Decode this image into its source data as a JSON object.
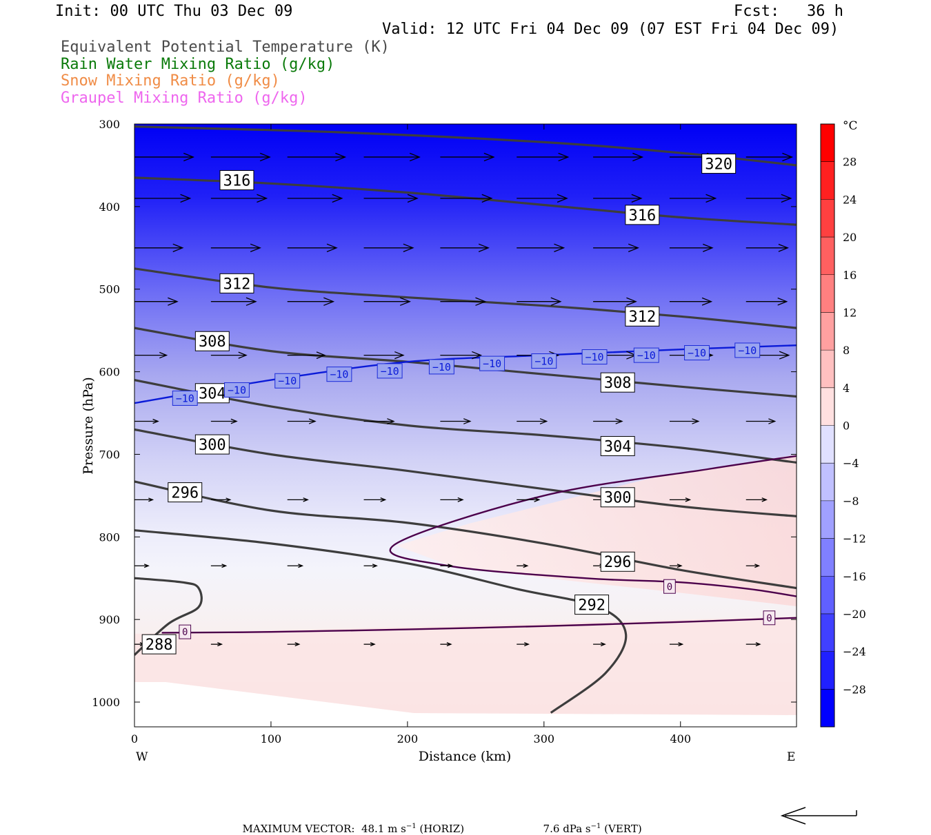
{
  "header": {
    "init": "Init: 00 UTC Thu 03 Dec 09",
    "fcst": "Fcst:   36 h",
    "valid": "Valid: 12 UTC Fri 04 Dec 09 (07 EST Fri 04 Dec 09)",
    "fields": [
      {
        "label": "Equivalent Potential Temperature (K)",
        "color": "#4a4a4a"
      },
      {
        "label": "Rain Water Mixing Ratio (g/kg)",
        "color": "#0a7a0a"
      },
      {
        "label": "Snow Mixing Ratio (g/kg)",
        "color": "#f08c46"
      },
      {
        "label": "Graupel Mixing Ratio (g/kg)",
        "color": "#ee66ee"
      }
    ]
  },
  "chart_data": {
    "type": "cross-section",
    "xlabel": "Distance (km)",
    "ylabel": "Pressure (hPa)",
    "xlim": [
      0,
      485
    ],
    "ylim": [
      1030,
      300
    ],
    "y_reversed": true,
    "x_ticks": [
      0,
      100,
      200,
      300,
      400
    ],
    "y_ticks": [
      300,
      400,
      500,
      600,
      700,
      800,
      900,
      1000
    ],
    "left_end_label": "W",
    "right_end_label": "E",
    "colorbar": {
      "unit": "°C",
      "range": [
        -32,
        32
      ],
      "tick_labels": [
        "28",
        "24",
        "20",
        "16",
        "12",
        "8",
        "4",
        "0",
        "−4",
        "−8",
        "−12",
        "−16",
        "−20",
        "−24",
        "−28"
      ],
      "cold_color": "#0000ff",
      "warm_color": "#ff0000"
    },
    "theta_e_contours": [
      {
        "value": "320",
        "points": [
          [
            0,
            303
          ],
          [
            150,
            310
          ],
          [
            300,
            322
          ],
          [
            400,
            335
          ],
          [
            485,
            350
          ]
        ],
        "labels": [
          [
            428,
            348
          ]
        ]
      },
      {
        "value": "316",
        "points": [
          [
            0,
            365
          ],
          [
            100,
            372
          ],
          [
            200,
            383
          ],
          [
            300,
            398
          ],
          [
            400,
            413
          ],
          [
            485,
            422
          ]
        ],
        "labels": [
          [
            75,
            368
          ],
          [
            372,
            410
          ]
        ]
      },
      {
        "value": "312",
        "points": [
          [
            0,
            475
          ],
          [
            100,
            498
          ],
          [
            200,
            510
          ],
          [
            300,
            520
          ],
          [
            400,
            533
          ],
          [
            485,
            547
          ]
        ],
        "labels": [
          [
            75,
            493
          ],
          [
            372,
            533
          ]
        ]
      },
      {
        "value": "308",
        "points": [
          [
            0,
            547
          ],
          [
            100,
            575
          ],
          [
            200,
            588
          ],
          [
            300,
            603
          ],
          [
            400,
            618
          ],
          [
            485,
            630
          ]
        ],
        "labels": [
          [
            57,
            563
          ],
          [
            354,
            613
          ]
        ]
      },
      {
        "value": "304",
        "points": [
          [
            0,
            610
          ],
          [
            100,
            642
          ],
          [
            200,
            665
          ],
          [
            300,
            677
          ],
          [
            400,
            692
          ],
          [
            485,
            710
          ]
        ],
        "labels": [
          [
            57,
            626
          ],
          [
            354,
            690
          ]
        ]
      },
      {
        "value": "300",
        "points": [
          [
            0,
            670
          ],
          [
            100,
            700
          ],
          [
            200,
            720
          ],
          [
            300,
            742
          ],
          [
            400,
            763
          ],
          [
            485,
            775
          ]
        ],
        "labels": [
          [
            57,
            688
          ],
          [
            354,
            752
          ]
        ]
      },
      {
        "value": "296",
        "points": [
          [
            0,
            733
          ],
          [
            100,
            768
          ],
          [
            200,
            783
          ],
          [
            300,
            808
          ],
          [
            400,
            840
          ],
          [
            485,
            862
          ]
        ],
        "labels": [
          [
            37,
            746
          ],
          [
            354,
            830
          ]
        ]
      },
      {
        "value": "292",
        "points": [
          [
            0,
            792
          ],
          [
            100,
            808
          ],
          [
            200,
            832
          ],
          [
            280,
            863
          ],
          [
            340,
            885
          ],
          [
            360,
            918
          ],
          [
            345,
            965
          ],
          [
            305,
            1013
          ]
        ],
        "labels": [
          [
            335,
            882
          ]
        ]
      },
      {
        "value": "288",
        "points": [
          [
            0,
            850
          ],
          [
            35,
            855
          ],
          [
            47,
            862
          ],
          [
            47,
            885
          ],
          [
            25,
            905
          ],
          [
            0,
            943
          ]
        ],
        "labels": [
          [
            18,
            930
          ]
        ]
      }
    ],
    "isotherms": [
      {
        "value": "0",
        "points": [
          [
            20,
            916
          ],
          [
            100,
            915
          ],
          [
            200,
            912
          ],
          [
            300,
            908
          ],
          [
            400,
            903
          ],
          [
            485,
            898
          ]
        ],
        "labels": [
          [
            37,
            915
          ],
          [
            465,
            898
          ]
        ]
      },
      {
        "value": "0",
        "points": [
          [
            485,
            702
          ],
          [
            420,
            718
          ],
          [
            300,
            750
          ],
          [
            190,
            810
          ],
          [
            230,
            835
          ],
          [
            330,
            850
          ],
          [
            400,
            855
          ],
          [
            450,
            863
          ],
          [
            485,
            872
          ]
        ],
        "labels": [
          [
            392,
            860
          ]
        ]
      },
      {
        "value": "−10",
        "points": [
          [
            0,
            638
          ],
          [
            100,
            610
          ],
          [
            200,
            588
          ],
          [
            300,
            580
          ],
          [
            400,
            573
          ],
          [
            485,
            568
          ]
        ],
        "labels": [
          [
            37,
            632
          ],
          [
            75,
            622
          ],
          [
            112,
            611
          ],
          [
            150,
            603
          ],
          [
            187,
            599
          ],
          [
            225,
            594
          ],
          [
            262,
            590
          ],
          [
            300,
            587
          ],
          [
            337,
            582
          ],
          [
            375,
            580
          ],
          [
            412,
            577
          ],
          [
            449,
            574
          ]
        ]
      }
    ],
    "wind_vectors": {
      "levels": [
        340,
        390,
        450,
        515,
        580,
        660,
        755,
        835,
        930
      ],
      "x": [
        0,
        56,
        112,
        168,
        224,
        280,
        336,
        392,
        448
      ],
      "u": [
        [
          55,
          55,
          54,
          52,
          50,
          48,
          46,
          44,
          43
        ],
        [
          52,
          52,
          51,
          50,
          48,
          47,
          45,
          43,
          42
        ],
        [
          45,
          46,
          46,
          46,
          45,
          44,
          42,
          40,
          39
        ],
        [
          40,
          42,
          43,
          43,
          42,
          41,
          40,
          39,
          38
        ],
        [
          30,
          33,
          35,
          37,
          38,
          39,
          40,
          40,
          40
        ],
        [
          22,
          24,
          26,
          28,
          28,
          28,
          27,
          27,
          27
        ],
        [
          17,
          18,
          19,
          20,
          21,
          21,
          20,
          19,
          19
        ],
        [
          13,
          14,
          14,
          12,
          11,
          10,
          10,
          11,
          12
        ],
        [
          9,
          10,
          11,
          10,
          10,
          11,
          11,
          12,
          13
        ]
      ]
    },
    "max_vector": {
      "label": "MAXIMUM VECTOR:",
      "horiz_value": "48.1",
      "horiz_unit": "m s",
      "horiz_exp": "−1",
      "horiz_tag": "(HORIZ)",
      "vert_value": "7.6",
      "vert_unit": "dPa s",
      "vert_exp": "−1",
      "vert_tag": "(VERT)"
    }
  }
}
